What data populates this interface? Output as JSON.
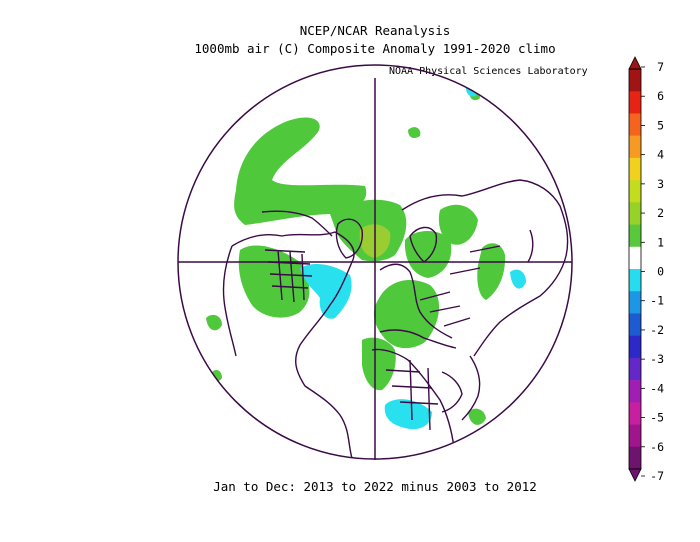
{
  "header": {
    "title": "NCEP/NCAR Reanalysis",
    "subtitle": "1000mb air (C) Composite Anomaly 1991-2020 climo",
    "credit": "NOAA Physical Sciences Laboratory"
  },
  "caption": "Jan to Dec: 2013 to 2022 minus 2003 to 2012",
  "colorbar": {
    "labels": [
      "7",
      "6",
      "5",
      "4",
      "3",
      "2",
      "1",
      "0",
      "-1",
      "-2",
      "-3",
      "-4",
      "-5",
      "-6",
      "-7"
    ],
    "colors": [
      "#a01414",
      "#e62314",
      "#f5641e",
      "#f59b23",
      "#f0d21e",
      "#c3dc1e",
      "#96d228",
      "#5ac83c",
      "#ffffff",
      "#28dcf0",
      "#1e96e6",
      "#1e5ad2",
      "#2d28c8",
      "#6428c8",
      "#a01eb4",
      "#c81ea0",
      "#a0148c",
      "#6e146e"
    ]
  },
  "map": {
    "projection": "north-polar-stereographic",
    "anomaly_colors": {
      "plus_1": "#4fc83c",
      "plus_2": "#9acd32",
      "minus_1": "#28e0ee"
    }
  }
}
